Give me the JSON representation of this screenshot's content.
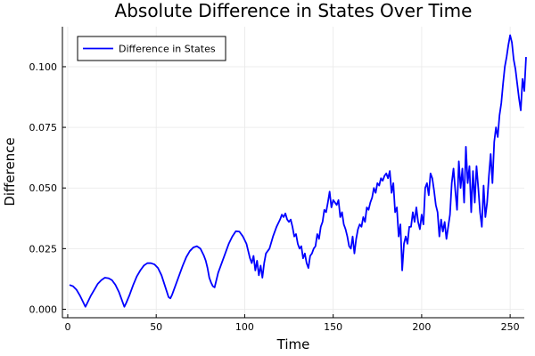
{
  "chart_data": {
    "type": "line",
    "title": "Absolute Difference in States Over Time",
    "xlabel": "Time",
    "ylabel": "Difference",
    "xlim": [
      -3,
      258
    ],
    "ylim": [
      -0.0035,
      0.1165
    ],
    "x_ticks": [
      0,
      50,
      100,
      150,
      200,
      250
    ],
    "x_tick_labels": [
      "0",
      "50",
      "100",
      "150",
      "200",
      "250"
    ],
    "y_ticks": [
      0.0,
      0.025,
      0.05,
      0.075,
      0.1
    ],
    "y_tick_labels": [
      "0.000",
      "0.025",
      "0.050",
      "0.075",
      "0.100"
    ],
    "grid": true,
    "legend_position": "top-left",
    "series": [
      {
        "name": "Difference in States",
        "color": "#0000ff",
        "points": [
          [
            1,
            0.01
          ],
          [
            3,
            0.0095
          ],
          [
            5,
            0.008
          ],
          [
            7,
            0.0055
          ],
          [
            9,
            0.0025
          ],
          [
            10,
            0.001
          ],
          [
            11,
            0.0025
          ],
          [
            13,
            0.0055
          ],
          [
            15,
            0.008
          ],
          [
            17,
            0.0105
          ],
          [
            19,
            0.012
          ],
          [
            21,
            0.013
          ],
          [
            23,
            0.0128
          ],
          [
            25,
            0.012
          ],
          [
            27,
            0.01
          ],
          [
            29,
            0.007
          ],
          [
            31,
            0.003
          ],
          [
            32,
            0.001
          ],
          [
            33,
            0.0025
          ],
          [
            35,
            0.006
          ],
          [
            37,
            0.01
          ],
          [
            39,
            0.0135
          ],
          [
            41,
            0.016
          ],
          [
            43,
            0.018
          ],
          [
            45,
            0.019
          ],
          [
            47,
            0.019
          ],
          [
            49,
            0.0185
          ],
          [
            51,
            0.017
          ],
          [
            53,
            0.014
          ],
          [
            55,
            0.0095
          ],
          [
            57,
            0.005
          ],
          [
            58,
            0.0045
          ],
          [
            59,
            0.006
          ],
          [
            61,
            0.01
          ],
          [
            63,
            0.014
          ],
          [
            65,
            0.018
          ],
          [
            67,
            0.0215
          ],
          [
            69,
            0.024
          ],
          [
            71,
            0.0255
          ],
          [
            73,
            0.026
          ],
          [
            75,
            0.025
          ],
          [
            77,
            0.022
          ],
          [
            78,
            0.02
          ],
          [
            79,
            0.017
          ],
          [
            80,
            0.013
          ],
          [
            81,
            0.011
          ],
          [
            82,
            0.0095
          ],
          [
            83,
            0.009
          ],
          [
            84,
            0.012
          ],
          [
            85,
            0.015
          ],
          [
            87,
            0.019
          ],
          [
            89,
            0.023
          ],
          [
            91,
            0.027
          ],
          [
            93,
            0.03
          ],
          [
            95,
            0.0322
          ],
          [
            97,
            0.032
          ],
          [
            99,
            0.03
          ],
          [
            101,
            0.027
          ],
          [
            102,
            0.024
          ],
          [
            103,
            0.021
          ],
          [
            104,
            0.019
          ],
          [
            105,
            0.022
          ],
          [
            106,
            0.016
          ],
          [
            107,
            0.02
          ],
          [
            108,
            0.014
          ],
          [
            109,
            0.018
          ],
          [
            110,
            0.013
          ],
          [
            111,
            0.019
          ],
          [
            112,
            0.023
          ],
          [
            114,
            0.025
          ],
          [
            116,
            0.03
          ],
          [
            118,
            0.034
          ],
          [
            120,
            0.037
          ],
          [
            121,
            0.039
          ],
          [
            122,
            0.038
          ],
          [
            123,
            0.0395
          ],
          [
            124,
            0.037
          ],
          [
            125,
            0.036
          ],
          [
            126,
            0.037
          ],
          [
            127,
            0.034
          ],
          [
            128,
            0.03
          ],
          [
            129,
            0.031
          ],
          [
            130,
            0.027
          ],
          [
            131,
            0.025
          ],
          [
            132,
            0.026
          ],
          [
            133,
            0.021
          ],
          [
            134,
            0.023
          ],
          [
            135,
            0.019
          ],
          [
            136,
            0.017
          ],
          [
            137,
            0.022
          ],
          [
            138,
            0.023
          ],
          [
            139,
            0.025
          ],
          [
            140,
            0.026
          ],
          [
            141,
            0.031
          ],
          [
            142,
            0.029
          ],
          [
            143,
            0.034
          ],
          [
            144,
            0.036
          ],
          [
            145,
            0.041
          ],
          [
            146,
            0.04
          ],
          [
            147,
            0.044
          ],
          [
            148,
            0.0485
          ],
          [
            149,
            0.042
          ],
          [
            150,
            0.045
          ],
          [
            151,
            0.044
          ],
          [
            152,
            0.043
          ],
          [
            153,
            0.045
          ],
          [
            154,
            0.038
          ],
          [
            155,
            0.04
          ],
          [
            156,
            0.035
          ],
          [
            157,
            0.033
          ],
          [
            158,
            0.03
          ],
          [
            159,
            0.026
          ],
          [
            160,
            0.025
          ],
          [
            161,
            0.03
          ],
          [
            162,
            0.023
          ],
          [
            163,
            0.029
          ],
          [
            164,
            0.033
          ],
          [
            165,
            0.035
          ],
          [
            166,
            0.034
          ],
          [
            167,
            0.038
          ],
          [
            168,
            0.036
          ],
          [
            169,
            0.042
          ],
          [
            170,
            0.041
          ],
          [
            171,
            0.044
          ],
          [
            172,
            0.046
          ],
          [
            173,
            0.05
          ],
          [
            174,
            0.048
          ],
          [
            175,
            0.052
          ],
          [
            176,
            0.051
          ],
          [
            177,
            0.054
          ],
          [
            178,
            0.053
          ],
          [
            179,
            0.055
          ],
          [
            180,
            0.056
          ],
          [
            181,
            0.054
          ],
          [
            182,
            0.057
          ],
          [
            183,
            0.048
          ],
          [
            184,
            0.052
          ],
          [
            185,
            0.04
          ],
          [
            186,
            0.042
          ],
          [
            187,
            0.03
          ],
          [
            188,
            0.035
          ],
          [
            189,
            0.016
          ],
          [
            190,
            0.027
          ],
          [
            191,
            0.03
          ],
          [
            192,
            0.027
          ],
          [
            193,
            0.034
          ],
          [
            194,
            0.034
          ],
          [
            195,
            0.04
          ],
          [
            196,
            0.036
          ],
          [
            197,
            0.042
          ],
          [
            198,
            0.036
          ],
          [
            199,
            0.033
          ],
          [
            200,
            0.039
          ],
          [
            201,
            0.035
          ],
          [
            202,
            0.05
          ],
          [
            203,
            0.052
          ],
          [
            204,
            0.047
          ],
          [
            205,
            0.056
          ],
          [
            206,
            0.054
          ],
          [
            207,
            0.049
          ],
          [
            208,
            0.043
          ],
          [
            209,
            0.04
          ],
          [
            210,
            0.03
          ],
          [
            211,
            0.037
          ],
          [
            212,
            0.032
          ],
          [
            213,
            0.036
          ],
          [
            214,
            0.029
          ],
          [
            215,
            0.034
          ],
          [
            216,
            0.039
          ],
          [
            217,
            0.052
          ],
          [
            218,
            0.058
          ],
          [
            219,
            0.049
          ],
          [
            220,
            0.041
          ],
          [
            221,
            0.061
          ],
          [
            222,
            0.05
          ],
          [
            223,
            0.058
          ],
          [
            224,
            0.044
          ],
          [
            225,
            0.067
          ],
          [
            226,
            0.052
          ],
          [
            227,
            0.059
          ],
          [
            228,
            0.04
          ],
          [
            229,
            0.057
          ],
          [
            230,
            0.044
          ],
          [
            231,
            0.059
          ],
          [
            232,
            0.05
          ],
          [
            233,
            0.04
          ],
          [
            234,
            0.034
          ],
          [
            235,
            0.051
          ],
          [
            236,
            0.038
          ],
          [
            237,
            0.044
          ],
          [
            238,
            0.055
          ],
          [
            239,
            0.064
          ],
          [
            240,
            0.052
          ],
          [
            241,
            0.069
          ],
          [
            242,
            0.075
          ],
          [
            243,
            0.071
          ],
          [
            244,
            0.08
          ],
          [
            245,
            0.085
          ],
          [
            246,
            0.093
          ],
          [
            247,
            0.1
          ],
          [
            248,
            0.104
          ],
          [
            249,
            0.109
          ],
          [
            250,
            0.113
          ],
          [
            251,
            0.11
          ],
          [
            252,
            0.103
          ],
          [
            253,
            0.099
          ],
          [
            254,
            0.093
          ],
          [
            255,
            0.087
          ],
          [
            256,
            0.082
          ],
          [
            257,
            0.095
          ],
          [
            258,
            0.09
          ],
          [
            259,
            0.104
          ]
        ]
      }
    ]
  }
}
